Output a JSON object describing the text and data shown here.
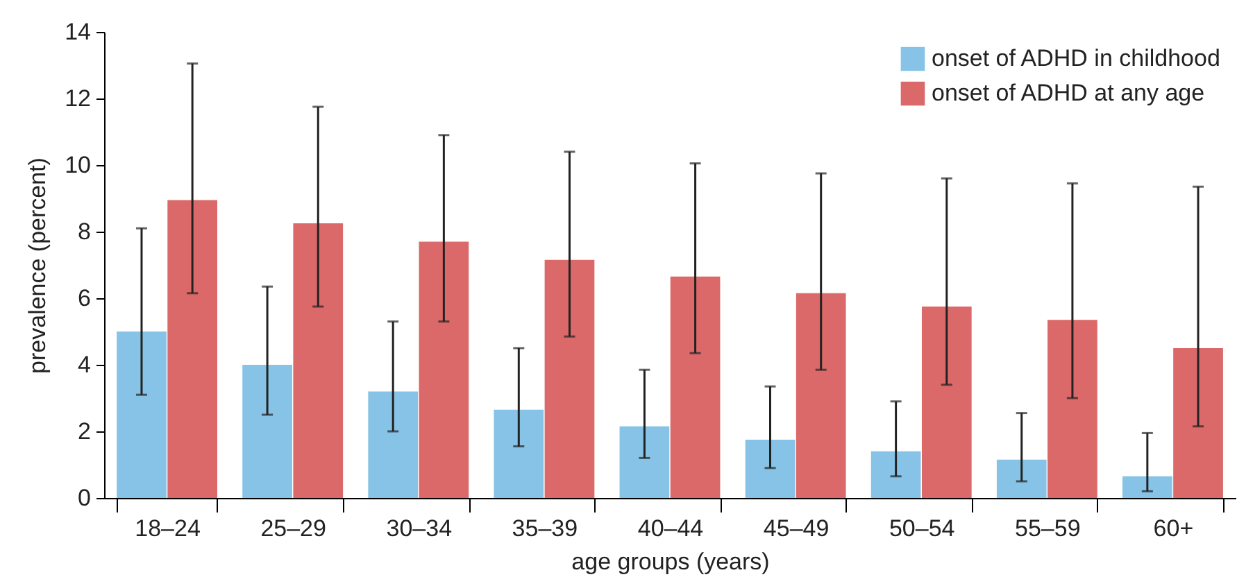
{
  "chart_data": {
    "type": "bar",
    "xlabel": "age groups (years)",
    "ylabel": "prevalence (percent)",
    "categories": [
      "18–24",
      "25–29",
      "30–34",
      "35–39",
      "40–44",
      "45–49",
      "50–54",
      "55–59",
      "60+"
    ],
    "series": [
      {
        "name": "onset of ADHD in childhood",
        "color": "#87c3e6",
        "values": [
          5.0,
          4.0,
          3.2,
          2.65,
          2.15,
          1.75,
          1.4,
          1.15,
          0.65
        ],
        "errors": [
          [
            3.1,
            8.1
          ],
          [
            2.5,
            6.35
          ],
          [
            2.0,
            5.3
          ],
          [
            1.55,
            4.5
          ],
          [
            1.2,
            3.85
          ],
          [
            0.9,
            3.35
          ],
          [
            0.65,
            2.9
          ],
          [
            0.5,
            2.55
          ],
          [
            0.2,
            1.95
          ]
        ]
      },
      {
        "name": "onset of ADHD at any age",
        "color": "#dc6969",
        "values": [
          8.95,
          8.25,
          7.7,
          7.15,
          6.65,
          6.15,
          5.75,
          5.35,
          4.5
        ],
        "errors": [
          [
            6.15,
            13.05
          ],
          [
            5.75,
            11.75
          ],
          [
            5.3,
            10.9
          ],
          [
            4.85,
            10.4
          ],
          [
            4.35,
            10.05
          ],
          [
            3.85,
            9.75
          ],
          [
            3.4,
            9.6
          ],
          [
            3.0,
            9.45
          ],
          [
            2.15,
            9.35
          ]
        ]
      }
    ],
    "ylim": [
      0,
      14
    ],
    "yticks": [
      0,
      2,
      4,
      6,
      8,
      10,
      12,
      14
    ],
    "grid": false,
    "legend": "top right"
  }
}
